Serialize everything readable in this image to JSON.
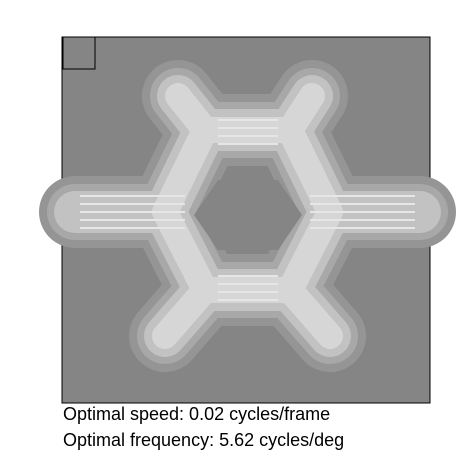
{
  "caption": {
    "line1": "Optimal speed: 0.02 cycles/frame",
    "line2": "Optimal frequency: 5.62 cycles/deg"
  }
}
